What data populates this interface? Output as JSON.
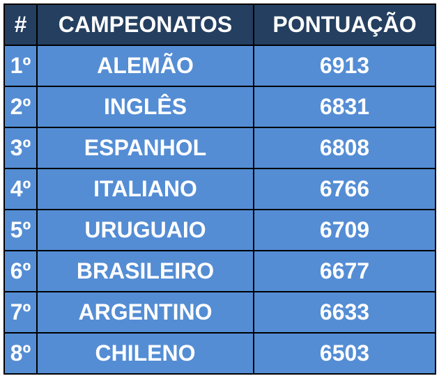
{
  "table": {
    "headers": [
      "#",
      "CAMPEONATOS",
      "PONTUAÇÃO"
    ],
    "rows": [
      [
        "1º",
        "ALEMÃO",
        "6913"
      ],
      [
        "2º",
        "INGLÊS",
        "6831"
      ],
      [
        "3º",
        "ESPANHOL",
        "6808"
      ],
      [
        "4º",
        "ITALIANO",
        "6766"
      ],
      [
        "5º",
        "URUGUAIO",
        "6709"
      ],
      [
        "6º",
        "BRASILEIRO",
        "6677"
      ],
      [
        "7º",
        "ARGENTINO",
        "6633"
      ],
      [
        "8º",
        "CHILENO",
        "6503"
      ]
    ]
  },
  "colors": {
    "header_bg": "#243f60",
    "row_bg": "#548dd4",
    "text": "#ffffff",
    "border": "#000000"
  }
}
